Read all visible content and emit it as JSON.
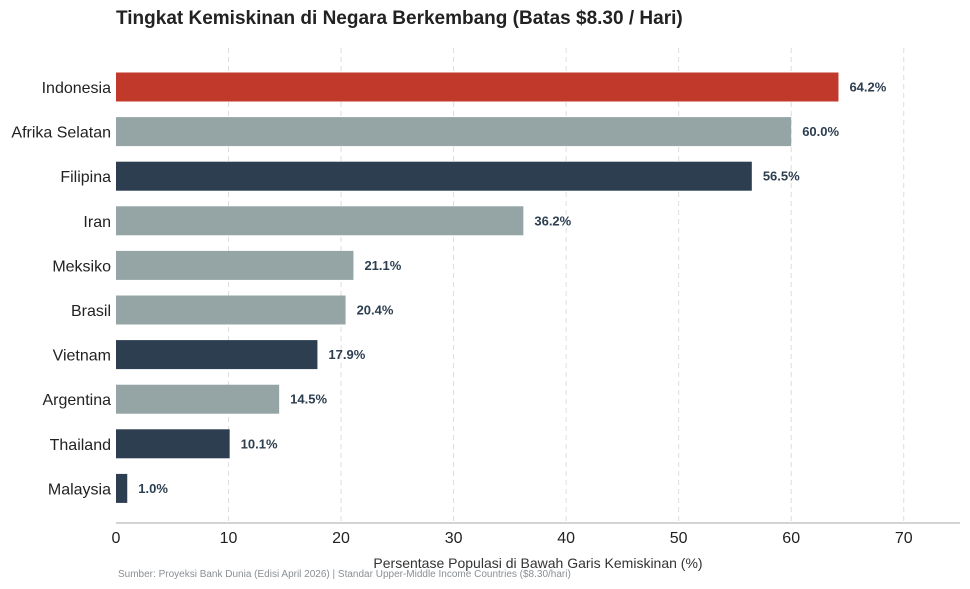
{
  "colors": {
    "highlight": "#c0392b",
    "dark": "#2c3e50",
    "gray": "#95a5a6"
  },
  "chart_data": {
    "type": "bar",
    "orientation": "horizontal",
    "title": "Tingkat Kemiskinan di Negara Berkembang (Batas $8.30 / Hari)",
    "xlabel": "Persentase Populasi di Bawah Garis Kemiskinan (%)",
    "ylabel": "",
    "source": "Sumber: Proyeksi Bank Dunia (Edisi April 2026) | Standar Upper-Middle Income Countries ($8.30/hari)",
    "xlim": [
      0,
      75
    ],
    "xticks": [
      0,
      10,
      20,
      30,
      40,
      50,
      60,
      70
    ],
    "grid": "vertical dashed",
    "categories": [
      "Indonesia",
      "Afrika Selatan",
      "Filipina",
      "Iran",
      "Meksiko",
      "Brasil",
      "Vietnam",
      "Argentina",
      "Thailand",
      "Malaysia"
    ],
    "values": [
      64.2,
      60.0,
      56.5,
      36.2,
      21.1,
      20.4,
      17.9,
      14.5,
      10.1,
      1.0
    ],
    "value_labels": [
      "64.2%",
      "60.0%",
      "56.5%",
      "36.2%",
      "21.1%",
      "20.4%",
      "17.9%",
      "14.5%",
      "10.1%",
      "1.0%"
    ],
    "bar_colors": [
      "highlight",
      "gray",
      "dark",
      "gray",
      "gray",
      "gray",
      "dark",
      "gray",
      "dark",
      "dark"
    ]
  }
}
